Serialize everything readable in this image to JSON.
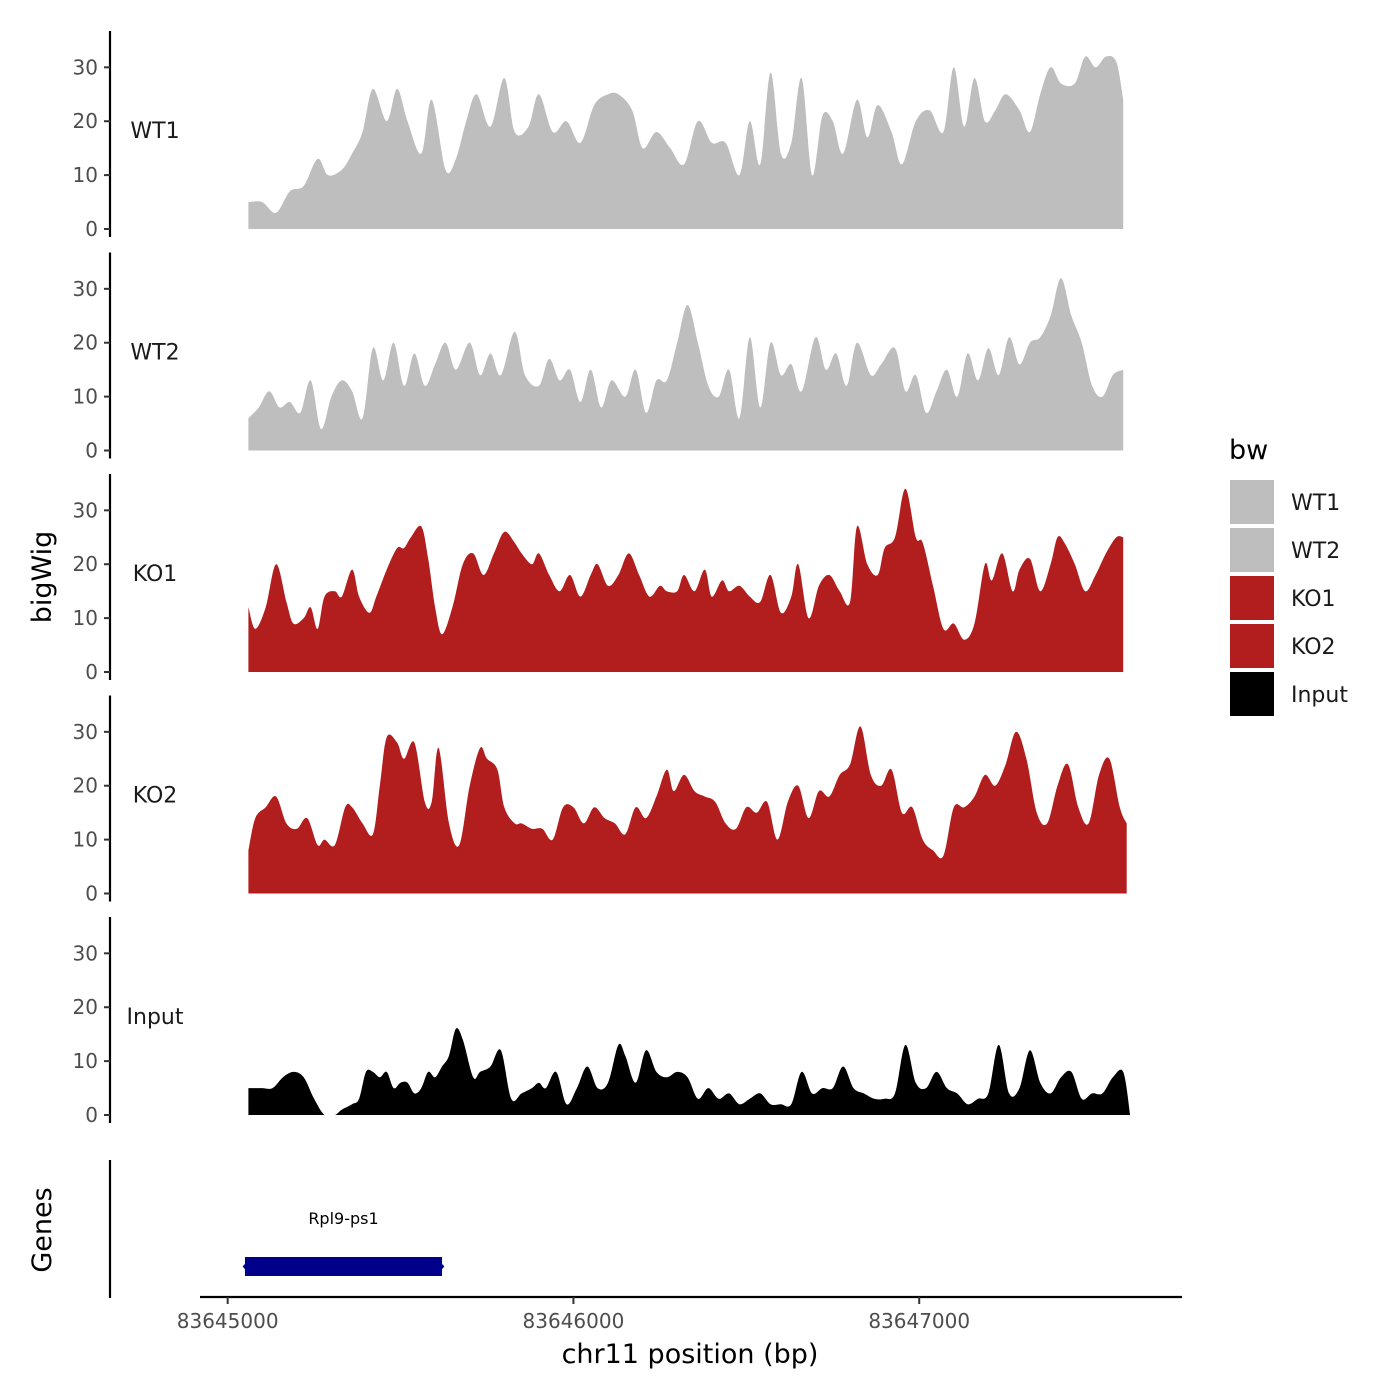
{
  "chart_data": {
    "type": "area",
    "xlabel": "chr11 position (bp)",
    "ylabel": "bigWig",
    "genes_label": "Genes",
    "xlim": [
      83644920,
      83647760
    ],
    "ylim": [
      0,
      36
    ],
    "x_ticks": [
      83645000,
      83646000,
      83647000
    ],
    "x_tick_labels": [
      "83645000",
      "83646000",
      "83647000"
    ],
    "y_ticks": [
      0,
      10,
      20,
      30
    ],
    "y_tick_labels": [
      "0",
      "10",
      "20",
      "30"
    ],
    "legend": {
      "title": "bw",
      "position": "right",
      "entries": [
        {
          "label": "WT1",
          "color": "#bebebe"
        },
        {
          "label": "WT2",
          "color": "#bebebe"
        },
        {
          "label": "KO1",
          "color": "#b21e1e"
        },
        {
          "label": "KO2",
          "color": "#b21e1e"
        },
        {
          "label": "Input",
          "color": "#000000"
        }
      ]
    },
    "series": [
      {
        "name": "WT1",
        "color": "#bebebe",
        "x": [
          83645060,
          83645100,
          83645140,
          83645180,
          83645220,
          83645260,
          83645290,
          83645330,
          83645360,
          83645390,
          83645420,
          83645460,
          83645490,
          83645520,
          83645560,
          83645590,
          83645630,
          83645660,
          83645690,
          83645720,
          83645760,
          83645800,
          83645830,
          83645870,
          83645900,
          83645940,
          83645980,
          83646020,
          83646060,
          83646100,
          83646130,
          83646170,
          83646200,
          83646240,
          83646280,
          83646320,
          83646360,
          83646400,
          83646440,
          83646480,
          83646510,
          83646540,
          83646570,
          83646600,
          83646630,
          83646660,
          83646690,
          83646720,
          83646750,
          83646780,
          83646820,
          83646850,
          83646880,
          83646920,
          83646950,
          83646990,
          83647030,
          83647070,
          83647100,
          83647130,
          83647160,
          83647190,
          83647220,
          83647250,
          83647290,
          83647320,
          83647350,
          83647380,
          83647410,
          83647450,
          83647480,
          83647510,
          83647540,
          83647570,
          83647590
        ],
        "y": [
          5,
          5,
          3,
          7,
          8,
          13,
          10,
          11,
          14,
          18,
          26,
          20,
          26,
          20,
          14,
          24,
          11,
          13,
          20,
          25,
          19,
          28,
          18,
          19,
          25,
          18,
          20,
          16,
          23,
          25,
          25,
          22,
          15,
          18,
          15,
          12,
          20,
          16,
          16,
          10,
          20,
          12,
          29,
          14,
          16,
          28,
          10,
          21,
          20,
          14,
          24,
          17,
          23,
          18,
          12,
          20,
          22,
          18,
          30,
          19,
          28,
          20,
          22,
          25,
          22,
          18,
          25,
          30,
          27,
          27,
          32,
          30,
          32,
          31,
          24
        ]
      },
      {
        "name": "WT2",
        "color": "#bebebe",
        "x": [
          83645060,
          83645090,
          83645120,
          83645150,
          83645180,
          83645210,
          83645240,
          83645270,
          83645300,
          83645330,
          83645360,
          83645390,
          83645420,
          83645450,
          83645480,
          83645510,
          83645540,
          83645570,
          83645600,
          83645630,
          83645660,
          83645700,
          83645730,
          83645760,
          83645790,
          83645830,
          83645860,
          83645900,
          83645930,
          83645960,
          83645990,
          83646020,
          83646050,
          83646080,
          83646110,
          83646150,
          83646180,
          83646210,
          83646240,
          83646270,
          83646300,
          83646330,
          83646360,
          83646390,
          83646420,
          83646450,
          83646480,
          83646510,
          83646540,
          83646570,
          83646600,
          83646630,
          83646660,
          83646700,
          83646730,
          83646760,
          83646790,
          83646820,
          83646860,
          83646890,
          83646930,
          83646960,
          83646990,
          83647020,
          83647050,
          83647080,
          83647110,
          83647140,
          83647170,
          83647200,
          83647230,
          83647260,
          83647290,
          83647320,
          83647350,
          83647380,
          83647410,
          83647440,
          83647470,
          83647500,
          83647530,
          83647560,
          83647590
        ],
        "y": [
          6,
          8,
          11,
          8,
          9,
          7,
          13,
          4,
          10,
          13,
          11,
          6,
          19,
          13,
          20,
          12,
          18,
          12,
          16,
          20,
          15,
          20,
          14,
          18,
          14,
          22,
          14,
          12,
          17,
          13,
          15,
          9,
          15,
          8,
          13,
          10,
          15,
          7,
          13,
          13,
          20,
          27,
          20,
          12,
          10,
          15,
          6,
          21,
          8,
          20,
          14,
          16,
          11,
          21,
          15,
          18,
          12,
          20,
          14,
          16,
          19,
          11,
          14,
          7,
          11,
          15,
          10,
          18,
          13,
          19,
          14,
          21,
          16,
          20,
          21,
          25,
          32,
          25,
          20,
          12,
          10,
          14,
          15
        ]
      },
      {
        "name": "KO1",
        "color": "#b21e1e",
        "x": [
          83645060,
          83645080,
          83645110,
          83645140,
          83645170,
          83645190,
          83645220,
          83645240,
          83645260,
          83645280,
          83645310,
          83645330,
          83645360,
          83645380,
          83645410,
          83645430,
          83645460,
          83645490,
          83645510,
          83645530,
          83645560,
          83645580,
          83645600,
          83645620,
          83645650,
          83645680,
          83645710,
          83645740,
          83645770,
          83645800,
          83645830,
          83645850,
          83645880,
          83645900,
          83645930,
          83645960,
          83645990,
          83646020,
          83646050,
          83646070,
          83646100,
          83646130,
          83646160,
          83646190,
          83646220,
          83646250,
          83646270,
          83646300,
          83646320,
          83646350,
          83646380,
          83646400,
          83646430,
          83646450,
          83646480,
          83646510,
          83646540,
          83646570,
          83646600,
          83646630,
          83646650,
          83646680,
          83646710,
          83646740,
          83646770,
          83646800,
          83646820,
          83646850,
          83646880,
          83646900,
          83646930,
          83646960,
          83646990,
          83647010,
          83647040,
          83647070,
          83647100,
          83647130,
          83647160,
          83647190,
          83647210,
          83647240,
          83647270,
          83647290,
          83647320,
          83647350,
          83647380,
          83647400,
          83647420,
          83647450,
          83647480,
          83647510,
          83647540,
          83647570,
          83647590
        ],
        "y": [
          12,
          8,
          12,
          20,
          13,
          9,
          10,
          12,
          8,
          14,
          15,
          14,
          19,
          14,
          11,
          14,
          19,
          23,
          23,
          25,
          27,
          21,
          12,
          7,
          12,
          20,
          22,
          18,
          22,
          26,
          24,
          22,
          20,
          22,
          18,
          15,
          18,
          14,
          18,
          20,
          16,
          18,
          22,
          18,
          14,
          16,
          15,
          15,
          18,
          15,
          19,
          14,
          17,
          15,
          16,
          14,
          13,
          18,
          11,
          14,
          20,
          10,
          16,
          18,
          15,
          13,
          27,
          20,
          18,
          23,
          25,
          34,
          25,
          24,
          16,
          8,
          9,
          6,
          9,
          20,
          17,
          22,
          15,
          19,
          21,
          15,
          20,
          25,
          24,
          20,
          15,
          18,
          22,
          25,
          25
        ]
      },
      {
        "name": "KO2",
        "color": "#b21e1e",
        "x": [
          83645060,
          83645080,
          83645110,
          83645140,
          83645170,
          83645200,
          83645230,
          83645260,
          83645280,
          83645310,
          83645340,
          83645360,
          83645390,
          83645420,
          83645440,
          83645460,
          83645490,
          83645510,
          83645540,
          83645570,
          83645590,
          83645610,
          83645640,
          83645670,
          83645700,
          83645730,
          83645750,
          83645780,
          83645800,
          83645830,
          83645850,
          83645880,
          83645910,
          83645940,
          83645970,
          83646000,
          83646030,
          83646060,
          83646090,
          83646120,
          83646150,
          83646180,
          83646210,
          83646240,
          83646270,
          83646290,
          83646320,
          83646350,
          83646380,
          83646410,
          83646440,
          83646470,
          83646500,
          83646530,
          83646560,
          83646590,
          83646620,
          83646650,
          83646680,
          83646710,
          83646740,
          83646770,
          83646800,
          83646830,
          83646860,
          83646890,
          83646920,
          83646950,
          83646980,
          83647010,
          83647040,
          83647070,
          83647100,
          83647130,
          83647160,
          83647190,
          83647220,
          83647250,
          83647280,
          83647310,
          83647340,
          83647370,
          83647400,
          83647430,
          83647460,
          83647490,
          83647520,
          83647550,
          83647580,
          83647600
        ],
        "y": [
          8,
          14,
          16,
          18,
          13,
          12,
          14,
          9,
          10,
          9,
          16,
          16,
          13,
          11,
          20,
          29,
          28,
          25,
          28,
          17,
          17,
          27,
          13,
          9,
          20,
          27,
          25,
          23,
          16,
          13,
          13,
          12,
          12,
          10,
          16,
          16,
          13,
          16,
          14,
          13,
          11,
          16,
          14,
          18,
          23,
          19,
          22,
          19,
          18,
          17,
          13,
          12,
          16,
          15,
          17,
          10,
          17,
          20,
          14,
          19,
          18,
          22,
          24,
          31,
          22,
          20,
          23,
          15,
          16,
          10,
          8,
          7,
          16,
          16,
          18,
          22,
          20,
          24,
          30,
          25,
          15,
          13,
          20,
          24,
          16,
          13,
          22,
          25,
          16,
          13
        ]
      },
      {
        "name": "Input",
        "color": "#000000",
        "x": [
          83645060,
          83645080,
          83645100,
          83645130,
          83645160,
          83645190,
          83645220,
          83645250,
          83645280,
          83645310,
          83645330,
          83645360,
          83645380,
          83645400,
          83645420,
          83645440,
          83645460,
          83645480,
          83645500,
          83645520,
          83645540,
          83645560,
          83645580,
          83645600,
          83645620,
          83645640,
          83645660,
          83645680,
          83645710,
          83645730,
          83645760,
          83645790,
          83645820,
          83645850,
          83645880,
          83645900,
          83645920,
          83645950,
          83645980,
          83646010,
          83646040,
          83646070,
          83646100,
          83646130,
          83646150,
          83646180,
          83646210,
          83646240,
          83646270,
          83646300,
          83646330,
          83646360,
          83646390,
          83646420,
          83646450,
          83646480,
          83646510,
          83646540,
          83646570,
          83646600,
          83646630,
          83646660,
          83646690,
          83646720,
          83646750,
          83646780,
          83646810,
          83646840,
          83646870,
          83646900,
          83646930,
          83646960,
          83646990,
          83647020,
          83647050,
          83647080,
          83647110,
          83647140,
          83647170,
          83647200,
          83647230,
          83647260,
          83647290,
          83647320,
          83647350,
          83647380,
          83647410,
          83647440,
          83647470,
          83647500,
          83647530,
          83647560,
          83647590,
          83647610
        ],
        "y": [
          5,
          5,
          5,
          5,
          7,
          8,
          7,
          3,
          0,
          0,
          1,
          2,
          3,
          8,
          8,
          7,
          8,
          5,
          6,
          6,
          4,
          5,
          8,
          7,
          9,
          11,
          16,
          14,
          7,
          8,
          9,
          12,
          3,
          4,
          5,
          6,
          5,
          8,
          2,
          5,
          9,
          5,
          6,
          13,
          11,
          6,
          12,
          8,
          7,
          8,
          7,
          3,
          5,
          3,
          4,
          2,
          3,
          4,
          2,
          2,
          2,
          8,
          4,
          5,
          5,
          9,
          5,
          4,
          3,
          3,
          4,
          13,
          6,
          5,
          8,
          5,
          4,
          2,
          3,
          4,
          13,
          4,
          5,
          12,
          6,
          4,
          7,
          8,
          3,
          4,
          4,
          7,
          8,
          0
        ]
      }
    ],
    "genes": [
      {
        "name": "Rpl9-ps1",
        "start": 83645050,
        "end": 83645620,
        "color": "#00008b"
      }
    ]
  }
}
